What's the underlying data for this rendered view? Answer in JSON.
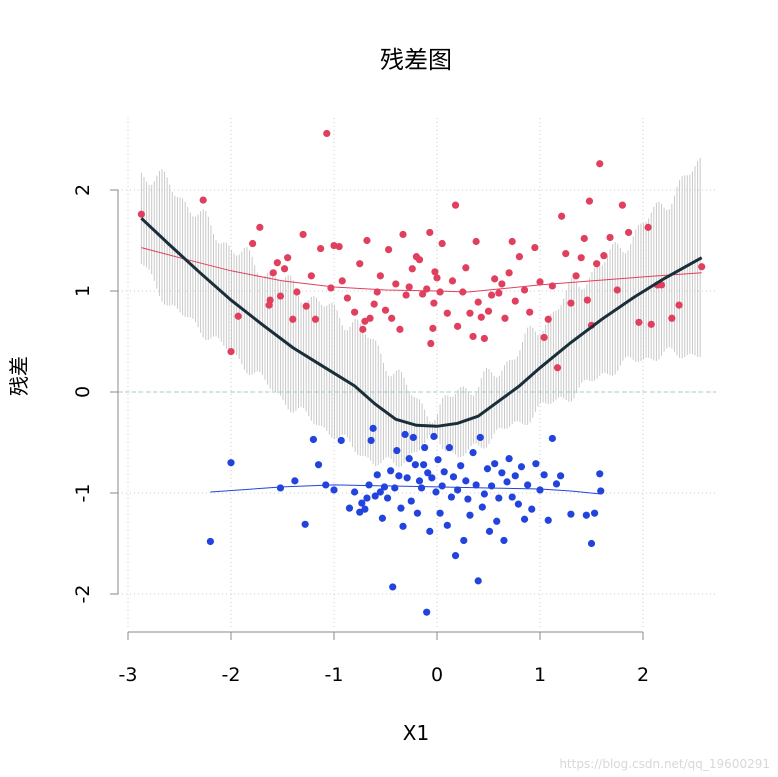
{
  "chart_data": {
    "type": "scatter",
    "title": "残差图",
    "xlabel": "X1",
    "ylabel": "残差",
    "xlim": [
      -3,
      2.7
    ],
    "ylim": [
      -2.3,
      2.7
    ],
    "xticks": [
      -3,
      -2,
      -1,
      0,
      1,
      2
    ],
    "yticks": [
      -2,
      -1,
      0,
      1,
      2
    ],
    "grid": true,
    "reference_line": 0,
    "colors": {
      "positive": "#e0405e",
      "negative": "#2244dd",
      "trend": "#1a2e3a",
      "band": "#c8c8c8",
      "grid": "#cccccc",
      "reference": "#a8c8c8"
    },
    "series": [
      {
        "points": [
          [
            -2.87,
            1.76
          ],
          [
            -2.27,
            1.9
          ],
          [
            -2.0,
            0.4
          ],
          [
            -1.93,
            0.75
          ],
          [
            -1.79,
            1.47
          ],
          [
            -1.72,
            1.63
          ],
          [
            -1.63,
            0.86
          ],
          [
            -1.62,
            0.91
          ],
          [
            -1.59,
            1.18
          ],
          [
            -1.55,
            1.28
          ],
          [
            -1.52,
            0.95
          ],
          [
            -1.48,
            1.22
          ],
          [
            -1.45,
            1.33
          ],
          [
            -1.4,
            0.72
          ],
          [
            -1.36,
            0.99
          ],
          [
            -1.3,
            1.56
          ],
          [
            -1.27,
            0.85
          ],
          [
            -1.22,
            1.15
          ],
          [
            -1.18,
            0.72
          ],
          [
            -1.13,
            1.42
          ],
          [
            -1.07,
            2.56
          ],
          [
            -1.03,
            1.03
          ],
          [
            -1.0,
            1.45
          ],
          [
            -0.95,
            1.44
          ],
          [
            -0.92,
            1.1
          ],
          [
            -0.87,
            0.93
          ],
          [
            -0.8,
            0.79
          ],
          [
            -0.75,
            1.27
          ],
          [
            -0.72,
            0.62
          ],
          [
            -0.7,
            0.7
          ],
          [
            -0.68,
            1.5
          ],
          [
            -0.65,
            0.73
          ],
          [
            -0.61,
            0.87
          ],
          [
            -0.58,
            0.99
          ],
          [
            -0.55,
            1.15
          ],
          [
            -0.5,
            0.81
          ],
          [
            -0.47,
            1.41
          ],
          [
            -0.44,
            0.73
          ],
          [
            -0.4,
            1.07
          ],
          [
            -0.36,
            0.62
          ],
          [
            -0.33,
            1.56
          ],
          [
            -0.3,
            0.96
          ],
          [
            -0.27,
            1.04
          ],
          [
            -0.24,
            1.22
          ],
          [
            -0.2,
            1.34
          ],
          [
            -0.17,
            1.31
          ],
          [
            -0.14,
            0.97
          ],
          [
            -0.1,
            1.02
          ],
          [
            -0.07,
            1.58
          ],
          [
            -0.06,
            0.48
          ],
          [
            -0.04,
            0.63
          ],
          [
            -0.03,
            0.88
          ],
          [
            -0.02,
            1.19
          ],
          [
            0.0,
            1.13
          ],
          [
            0.03,
            0.99
          ],
          [
            0.05,
            1.47
          ],
          [
            0.1,
            0.78
          ],
          [
            0.15,
            1.1
          ],
          [
            0.18,
            1.85
          ],
          [
            0.2,
            0.65
          ],
          [
            0.25,
            0.99
          ],
          [
            0.28,
            1.23
          ],
          [
            0.32,
            0.78
          ],
          [
            0.35,
            0.55
          ],
          [
            0.38,
            1.49
          ],
          [
            0.4,
            0.89
          ],
          [
            0.43,
            0.74
          ],
          [
            0.46,
            0.53
          ],
          [
            0.5,
            0.8
          ],
          [
            0.53,
            0.96
          ],
          [
            0.56,
            1.12
          ],
          [
            0.6,
            0.98
          ],
          [
            0.63,
            1.07
          ],
          [
            0.66,
            0.73
          ],
          [
            0.7,
            1.18
          ],
          [
            0.73,
            1.49
          ],
          [
            0.76,
            0.9
          ],
          [
            0.8,
            1.34
          ],
          [
            0.85,
            1.01
          ],
          [
            0.9,
            0.79
          ],
          [
            0.95,
            1.43
          ],
          [
            1.0,
            1.09
          ],
          [
            1.04,
            0.54
          ],
          [
            1.08,
            0.72
          ],
          [
            1.12,
            1.05
          ],
          [
            1.17,
            0.24
          ],
          [
            1.21,
            1.74
          ],
          [
            1.25,
            1.37
          ],
          [
            1.3,
            0.88
          ],
          [
            1.35,
            1.15
          ],
          [
            1.4,
            1.33
          ],
          [
            1.43,
            1.52
          ],
          [
            1.46,
            0.91
          ],
          [
            1.48,
            1.89
          ],
          [
            1.5,
            0.66
          ],
          [
            1.55,
            1.27
          ],
          [
            1.58,
            2.26
          ],
          [
            1.62,
            1.35
          ],
          [
            1.68,
            1.53
          ],
          [
            1.75,
            1.01
          ],
          [
            1.8,
            1.85
          ],
          [
            1.86,
            1.58
          ],
          [
            1.96,
            0.69
          ],
          [
            2.05,
            1.63
          ],
          [
            2.08,
            0.67
          ],
          [
            2.14,
            1.06
          ],
          [
            2.18,
            1.06
          ],
          [
            2.28,
            0.73
          ],
          [
            2.35,
            0.86
          ],
          [
            2.57,
            1.24
          ]
        ]
      },
      {
        "points": [
          [
            -2.2,
            -1.48
          ],
          [
            -2.0,
            -0.7
          ],
          [
            -1.52,
            -0.95
          ],
          [
            -1.38,
            -0.88
          ],
          [
            -1.28,
            -1.31
          ],
          [
            -1.2,
            -0.47
          ],
          [
            -1.15,
            -0.72
          ],
          [
            -1.08,
            -0.92
          ],
          [
            -1.0,
            -0.97
          ],
          [
            -0.93,
            -0.48
          ],
          [
            -0.85,
            -1.15
          ],
          [
            -0.8,
            -0.99
          ],
          [
            -0.75,
            -1.19
          ],
          [
            -0.73,
            -1.1
          ],
          [
            -0.7,
            -1.16
          ],
          [
            -0.68,
            -1.05
          ],
          [
            -0.66,
            -0.92
          ],
          [
            -0.64,
            -0.48
          ],
          [
            -0.62,
            -0.36
          ],
          [
            -0.6,
            -1.03
          ],
          [
            -0.58,
            -0.82
          ],
          [
            -0.55,
            -0.99
          ],
          [
            -0.53,
            -1.25
          ],
          [
            -0.51,
            -0.94
          ],
          [
            -0.48,
            -1.05
          ],
          [
            -0.45,
            -0.78
          ],
          [
            -0.43,
            -1.93
          ],
          [
            -0.41,
            -0.95
          ],
          [
            -0.39,
            -0.58
          ],
          [
            -0.37,
            -0.83
          ],
          [
            -0.35,
            -1.15
          ],
          [
            -0.33,
            -1.33
          ],
          [
            -0.31,
            -0.42
          ],
          [
            -0.29,
            -0.85
          ],
          [
            -0.27,
            -0.66
          ],
          [
            -0.25,
            -1.08
          ],
          [
            -0.23,
            -0.45
          ],
          [
            -0.21,
            -0.72
          ],
          [
            -0.19,
            -1.2
          ],
          [
            -0.17,
            -0.88
          ],
          [
            -0.15,
            -0.95
          ],
          [
            -0.13,
            -0.72
          ],
          [
            -0.12,
            -0.55
          ],
          [
            -0.1,
            -2.18
          ],
          [
            -0.09,
            -0.8
          ],
          [
            -0.07,
            -1.38
          ],
          [
            -0.05,
            -0.85
          ],
          [
            -0.03,
            -0.44
          ],
          [
            -0.01,
            -0.99
          ],
          [
            0.01,
            -0.67
          ],
          [
            0.03,
            -1.2
          ],
          [
            0.05,
            -0.93
          ],
          [
            0.07,
            -0.79
          ],
          [
            0.1,
            -1.32
          ],
          [
            0.12,
            -0.55
          ],
          [
            0.14,
            -1.04
          ],
          [
            0.16,
            -0.84
          ],
          [
            0.18,
            -1.62
          ],
          [
            0.2,
            -0.97
          ],
          [
            0.23,
            -0.73
          ],
          [
            0.26,
            -1.47
          ],
          [
            0.28,
            -0.88
          ],
          [
            0.3,
            -1.06
          ],
          [
            0.32,
            -1.22
          ],
          [
            0.35,
            -0.6
          ],
          [
            0.38,
            -0.92
          ],
          [
            0.4,
            -1.87
          ],
          [
            0.42,
            -0.45
          ],
          [
            0.44,
            -1.14
          ],
          [
            0.46,
            -1.01
          ],
          [
            0.49,
            -0.76
          ],
          [
            0.51,
            -1.38
          ],
          [
            0.53,
            -0.93
          ],
          [
            0.56,
            -0.71
          ],
          [
            0.58,
            -1.28
          ],
          [
            0.6,
            -1.05
          ],
          [
            0.63,
            -0.8
          ],
          [
            0.65,
            -1.47
          ],
          [
            0.68,
            -0.89
          ],
          [
            0.7,
            -0.66
          ],
          [
            0.73,
            -1.04
          ],
          [
            0.76,
            -0.83
          ],
          [
            0.79,
            -1.11
          ],
          [
            0.82,
            -0.74
          ],
          [
            0.85,
            -1.26
          ],
          [
            0.88,
            -0.92
          ],
          [
            0.92,
            -1.16
          ],
          [
            0.96,
            -0.71
          ],
          [
            1.0,
            -0.97
          ],
          [
            1.04,
            -0.82
          ],
          [
            1.08,
            -1.27
          ],
          [
            1.12,
            -0.46
          ],
          [
            1.16,
            -0.91
          ],
          [
            1.2,
            -0.83
          ],
          [
            1.3,
            -1.21
          ],
          [
            1.45,
            -1.22
          ],
          [
            1.5,
            -1.5
          ],
          [
            1.53,
            -1.2
          ],
          [
            1.58,
            -0.81
          ],
          [
            1.59,
            -0.98
          ]
        ]
      }
    ],
    "fits": [
      {
        "x": [
          -2.87,
          -2.5,
          -2.0,
          -1.5,
          -1.0,
          -0.5,
          0.0,
          0.3,
          0.6,
          1.0,
          1.5,
          2.0,
          2.57
        ],
        "y": [
          1.43,
          1.33,
          1.2,
          1.1,
          1.04,
          1.01,
          1.0,
          0.99,
          1.02,
          1.06,
          1.1,
          1.14,
          1.18
        ]
      },
      {
        "x": [
          -2.2,
          -1.5,
          -1.0,
          -0.5,
          0.0,
          0.5,
          1.0,
          1.3,
          1.59
        ],
        "y": [
          -0.99,
          -0.94,
          -0.92,
          -0.93,
          -0.94,
          -0.95,
          -0.96,
          -0.98,
          -1.01
        ]
      }
    ],
    "trend": {
      "x": [
        -2.87,
        -2.6,
        -2.3,
        -2.0,
        -1.7,
        -1.4,
        -1.1,
        -0.8,
        -0.6,
        -0.4,
        -0.2,
        0.0,
        0.2,
        0.4,
        0.6,
        0.8,
        1.0,
        1.3,
        1.6,
        1.9,
        2.2,
        2.57
      ],
      "y": [
        1.72,
        1.46,
        1.18,
        0.91,
        0.67,
        0.44,
        0.25,
        0.06,
        -0.12,
        -0.27,
        -0.33,
        -0.34,
        -0.31,
        -0.24,
        -0.09,
        0.06,
        0.24,
        0.49,
        0.72,
        0.93,
        1.12,
        1.33
      ]
    },
    "band_halfwidth": [
      0.45,
      0.6,
      0.55,
      0.52,
      0.55,
      0.6,
      0.6,
      0.62,
      0.58,
      0.45,
      0.25,
      0.1,
      0.35,
      0.3,
      0.3,
      0.38,
      0.4,
      0.52,
      0.55,
      0.62,
      0.75,
      0.95
    ]
  },
  "watermark": "https://blog.csdn.net/qq_19600291"
}
